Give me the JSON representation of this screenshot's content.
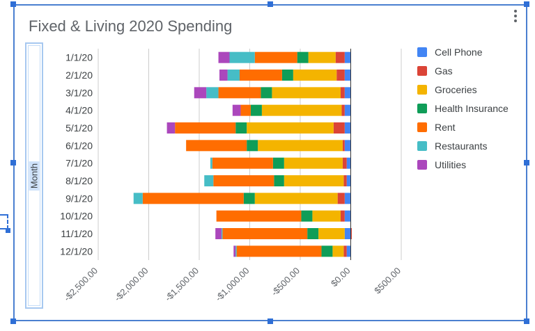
{
  "chart_data": {
    "type": "bar",
    "orientation": "horizontal",
    "stacked": true,
    "title": "Fixed & Living 2020 Spending",
    "ylabel": "Month",
    "xlabel": "",
    "categories": [
      "1/1/20",
      "2/1/20",
      "3/1/20",
      "4/1/20",
      "5/1/20",
      "6/1/20",
      "7/1/20",
      "8/1/20",
      "9/1/20",
      "10/1/20",
      "11/1/20",
      "12/1/20"
    ],
    "xlim": [
      -2500,
      500
    ],
    "x_ticks": [
      -2500,
      -2000,
      -1500,
      -1000,
      -500,
      0,
      500
    ],
    "x_tick_labels": [
      "-$2,500.00",
      "-$2,000.00",
      "-$1,500.00",
      "-$1,000.00",
      "-$500.00",
      "$0.00",
      "$500.00"
    ],
    "grid": true,
    "legend_position": "right",
    "series": [
      {
        "name": "Cell Phone",
        "color": "#4285f4",
        "values": [
          -60,
          -60,
          -60,
          -60,
          -60,
          -60,
          -40,
          -40,
          -60,
          -60,
          -60,
          -40
        ]
      },
      {
        "name": "Gas",
        "color": "#db4437",
        "values": [
          -90,
          -80,
          -40,
          -30,
          -110,
          -20,
          -40,
          -30,
          -70,
          -40,
          10,
          -30
        ]
      },
      {
        "name": "Groceries",
        "color": "#f4b400",
        "values": [
          -270,
          -430,
          -680,
          -790,
          -860,
          -840,
          -580,
          -590,
          -820,
          -280,
          -260,
          -110
        ]
      },
      {
        "name": "Health Insurance",
        "color": "#0f9d58",
        "values": [
          -110,
          -110,
          -110,
          -110,
          -110,
          -110,
          -110,
          -100,
          -110,
          -110,
          -110,
          -110
        ]
      },
      {
        "name": "Rent",
        "color": "#ff6d01",
        "values": [
          -420,
          -420,
          -420,
          -100,
          -600,
          -600,
          -600,
          -600,
          -1000,
          -840,
          -840,
          -840
        ]
      },
      {
        "name": "Restaurants",
        "color": "#46bdc6",
        "values": [
          -250,
          -120,
          -120,
          0,
          0,
          0,
          -20,
          -90,
          -90,
          0,
          -10,
          -10
        ]
      },
      {
        "name": "Utilities",
        "color": "#ab47bc",
        "values": [
          -110,
          -80,
          -120,
          -80,
          -80,
          0,
          0,
          0,
          0,
          0,
          -60,
          -20
        ]
      }
    ]
  }
}
